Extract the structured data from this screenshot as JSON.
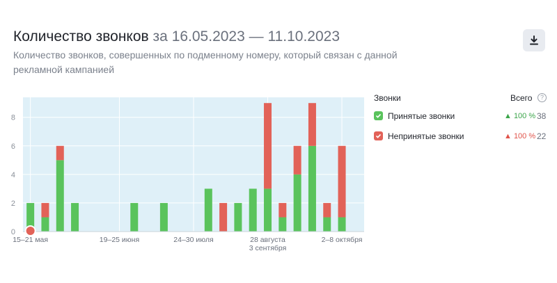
{
  "header": {
    "title_main": "Количество звонков",
    "title_range": "за 16.05.2023 — 11.10.2023",
    "subtitle": "Количество звонков, совершенных по подменному номеру, который связан с данной рекламной кампанией"
  },
  "legend": {
    "title": "Звонки",
    "total_label": "Всего",
    "help_glyph": "?",
    "items": [
      {
        "label": "Принятые звонки",
        "change": "▲ 100 %",
        "count": "38",
        "color": "#5ac35c"
      },
      {
        "label": "Непринятые звонки",
        "change": "▲ 100 %",
        "count": "22",
        "color": "#e26258"
      }
    ]
  },
  "chart_data": {
    "type": "bar",
    "stacked": true,
    "categories": [
      "15–21 мая",
      "",
      "",
      "",
      "",
      "",
      "19–25 июня",
      "",
      "",
      "",
      "",
      "24–30 июля",
      "",
      "",
      "",
      "",
      "28 августа – 3 сентября",
      "",
      "",
      "",
      "",
      "2–8 октября",
      ""
    ],
    "x_tick_labels": [
      {
        "index": 0,
        "lines": [
          "15–21 мая"
        ]
      },
      {
        "index": 6,
        "lines": [
          "19–25 июня"
        ]
      },
      {
        "index": 11,
        "lines": [
          "24–30 июля"
        ]
      },
      {
        "index": 16,
        "lines": [
          "28 августа",
          "3 сентября"
        ]
      },
      {
        "index": 21,
        "lines": [
          "2–8 октября"
        ]
      }
    ],
    "series": [
      {
        "name": "Принятые звонки",
        "color": "#5ac35c",
        "values": [
          2,
          1,
          5,
          2,
          0,
          0,
          0,
          2,
          0,
          2,
          0,
          0,
          3,
          0,
          2,
          3,
          3,
          1,
          4,
          6,
          1,
          1,
          0
        ]
      },
      {
        "name": "Непринятые звонки",
        "color": "#e26258",
        "values": [
          0,
          1,
          1,
          0,
          0,
          0,
          0,
          0,
          0,
          0,
          0,
          0,
          0,
          2,
          0,
          0,
          6,
          1,
          2,
          3,
          1,
          5,
          0
        ]
      }
    ],
    "yticks": [
      0,
      2,
      4,
      6,
      8
    ],
    "ylim": [
      0,
      9.4
    ],
    "grid": true,
    "background": "#dff0f8",
    "legend_position": "right"
  }
}
